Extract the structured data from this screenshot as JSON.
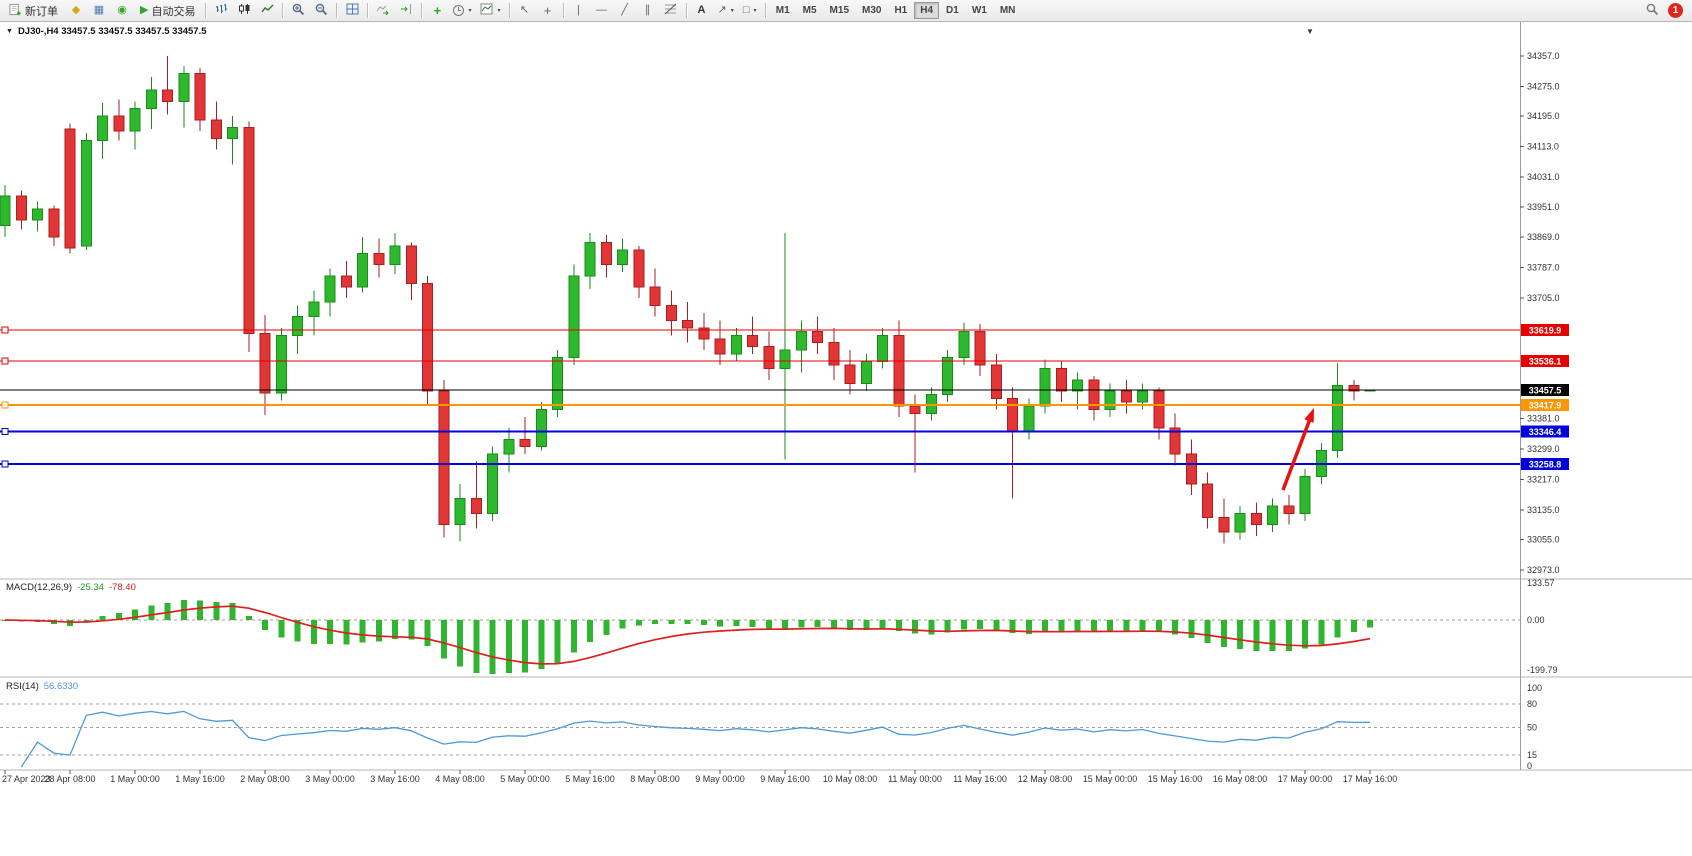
{
  "toolbar": {
    "new_order": "新订单",
    "autotrading": "自动交易",
    "timeframes": [
      "M1",
      "M5",
      "M15",
      "M30",
      "H1",
      "H4",
      "D1",
      "W1",
      "MN"
    ],
    "active_timeframe": "H4",
    "notification_badge": "1"
  },
  "chart": {
    "title": "DJ30-,H4 33457.5 33457.5 33457.5 33457.5",
    "symbol": "DJ30-",
    "period": "H4",
    "price_axis_ticks": [
      "34357.0",
      "34275.0",
      "34195.0",
      "34113.0",
      "34031.0",
      "33951.0",
      "33869.0",
      "33787.0",
      "33705.0",
      "33381.0",
      "33299.0",
      "33217.0",
      "33135.0",
      "33055.0",
      "32973.0"
    ],
    "time_axis_labels": [
      "27 Apr 2023",
      "28 Apr 08:00",
      "1 May 00:00",
      "1 May 16:00",
      "2 May 08:00",
      "3 May 00:00",
      "3 May 16:00",
      "4 May 08:00",
      "5 May 00:00",
      "5 May 16:00",
      "8 May 08:00",
      "9 May 00:00",
      "9 May 16:00",
      "10 May 08:00",
      "11 May 00:00",
      "11 May 16:00",
      "12 May 08:00",
      "15 May 00:00",
      "15 May 16:00",
      "16 May 08:00",
      "17 May 00:00",
      "17 May 16:00"
    ]
  },
  "macd": {
    "label": "MACD(12,26,9)",
    "value_main": "-25.34",
    "value_signal": "-78.40",
    "axis": [
      "133.57",
      "0.00",
      "-199.79"
    ]
  },
  "rsi": {
    "label": "RSI(14)",
    "value": "56.6330",
    "axis": [
      "100",
      "80",
      "50",
      "15",
      "0"
    ],
    "levels": [
      80,
      50,
      15
    ]
  },
  "chart_data": {
    "type": "candlestick",
    "symbol": "DJ30-",
    "timeframe": "H4",
    "current_ohlc": [
      33457.5,
      33457.5,
      33457.5,
      33457.5
    ],
    "price_range": [
      32973.0,
      34357.0
    ],
    "candles": [
      [
        33900,
        34010,
        33870,
        33980
      ],
      [
        33980,
        33995,
        33890,
        33915
      ],
      [
        33915,
        33965,
        33885,
        33945
      ],
      [
        33945,
        33955,
        33845,
        33870
      ],
      [
        34160,
        34175,
        33825,
        33840
      ],
      [
        33845,
        34150,
        33835,
        34130
      ],
      [
        34130,
        34230,
        34080,
        34195
      ],
      [
        34195,
        34240,
        34130,
        34155
      ],
      [
        34155,
        34235,
        34105,
        34215
      ],
      [
        34215,
        34300,
        34160,
        34265
      ],
      [
        34265,
        34357,
        34200,
        34235
      ],
      [
        34235,
        34330,
        34165,
        34310
      ],
      [
        34310,
        34325,
        34155,
        34185
      ],
      [
        34185,
        34235,
        34105,
        34135
      ],
      [
        34135,
        34195,
        34065,
        34165
      ],
      [
        34165,
        34180,
        33560,
        33610
      ],
      [
        33610,
        33660,
        33390,
        33450
      ],
      [
        33450,
        33625,
        33430,
        33605
      ],
      [
        33605,
        33685,
        33555,
        33655
      ],
      [
        33655,
        33725,
        33605,
        33695
      ],
      [
        33695,
        33785,
        33655,
        33765
      ],
      [
        33765,
        33805,
        33705,
        33735
      ],
      [
        33735,
        33870,
        33720,
        33825
      ],
      [
        33825,
        33865,
        33760,
        33795
      ],
      [
        33795,
        33880,
        33770,
        33845
      ],
      [
        33845,
        33855,
        33700,
        33745
      ],
      [
        33745,
        33765,
        33420,
        33455
      ],
      [
        33455,
        33485,
        33060,
        33095
      ],
      [
        33095,
        33205,
        33050,
        33165
      ],
      [
        33165,
        33265,
        33085,
        33125
      ],
      [
        33125,
        33305,
        33105,
        33285
      ],
      [
        33285,
        33355,
        33235,
        33325
      ],
      [
        33325,
        33385,
        33285,
        33305
      ],
      [
        33305,
        33425,
        33295,
        33405
      ],
      [
        33405,
        33565,
        33385,
        33545
      ],
      [
        33545,
        33795,
        33525,
        33765
      ],
      [
        33765,
        33880,
        33730,
        33855
      ],
      [
        33855,
        33875,
        33760,
        33795
      ],
      [
        33795,
        33865,
        33775,
        33835
      ],
      [
        33835,
        33845,
        33705,
        33735
      ],
      [
        33735,
        33785,
        33655,
        33685
      ],
      [
        33685,
        33725,
        33605,
        33645
      ],
      [
        33645,
        33695,
        33585,
        33625
      ],
      [
        33625,
        33665,
        33565,
        33595
      ],
      [
        33595,
        33645,
        33525,
        33555
      ],
      [
        33555,
        33625,
        33535,
        33605
      ],
      [
        33605,
        33655,
        33555,
        33575
      ],
      [
        33575,
        33615,
        33485,
        33515
      ],
      [
        33515,
        33880,
        33270,
        33565
      ],
      [
        33565,
        33645,
        33505,
        33615
      ],
      [
        33615,
        33655,
        33555,
        33585
      ],
      [
        33585,
        33625,
        33485,
        33525
      ],
      [
        33525,
        33565,
        33445,
        33475
      ],
      [
        33475,
        33555,
        33455,
        33535
      ],
      [
        33535,
        33625,
        33515,
        33605
      ],
      [
        33605,
        33645,
        33385,
        33415
      ],
      [
        33415,
        33445,
        33235,
        33395
      ],
      [
        33395,
        33465,
        33375,
        33445
      ],
      [
        33445,
        33565,
        33425,
        33545
      ],
      [
        33545,
        33640,
        33525,
        33615
      ],
      [
        33615,
        33635,
        33495,
        33525
      ],
      [
        33525,
        33555,
        33405,
        33435
      ],
      [
        33435,
        33465,
        33165,
        33345
      ],
      [
        33345,
        33435,
        33325,
        33415
      ],
      [
        33415,
        33540,
        33395,
        33515
      ],
      [
        33515,
        33535,
        33425,
        33455
      ],
      [
        33455,
        33505,
        33405,
        33485
      ],
      [
        33485,
        33495,
        33375,
        33405
      ],
      [
        33405,
        33475,
        33385,
        33455
      ],
      [
        33455,
        33485,
        33395,
        33425
      ],
      [
        33425,
        33475,
        33405,
        33455
      ],
      [
        33455,
        33465,
        33325,
        33355
      ],
      [
        33355,
        33395,
        33255,
        33285
      ],
      [
        33285,
        33325,
        33175,
        33205
      ],
      [
        33205,
        33235,
        33085,
        33115
      ],
      [
        33115,
        33165,
        33045,
        33075
      ],
      [
        33075,
        33145,
        33055,
        33125
      ],
      [
        33125,
        33155,
        33065,
        33095
      ],
      [
        33095,
        33165,
        33075,
        33145
      ],
      [
        33145,
        33175,
        33095,
        33125
      ],
      [
        33125,
        33245,
        33105,
        33225
      ],
      [
        33225,
        33315,
        33205,
        33295
      ],
      [
        33295,
        33530,
        33275,
        33470
      ],
      [
        33470,
        33485,
        33430,
        33455
      ],
      [
        33457.5,
        33457.5,
        33457.5,
        33457.5
      ]
    ],
    "horizontal_levels": [
      {
        "price": 33619.9,
        "label": "33619.9",
        "color": "#e60000",
        "width": 1
      },
      {
        "price": 33536.1,
        "label": "33536.1",
        "color": "#e60000",
        "width": 1
      },
      {
        "price": 33457.5,
        "label": "33457.5",
        "color": "#000000",
        "width": 1,
        "role": "current_price"
      },
      {
        "price": 33417.9,
        "label": "33417.9",
        "color": "#ff9500",
        "width": 2
      },
      {
        "price": 33346.4,
        "label": "33346.4",
        "color": "#0000dd",
        "width": 2
      },
      {
        "price": 33258.8,
        "label": "33258.8",
        "color": "#0000dd",
        "width": 2
      }
    ],
    "indicators": [
      {
        "type": "MACD",
        "params": [
          12,
          26,
          9
        ],
        "display": "-25.34 -78.40",
        "histogram_color": "#2fb52f",
        "signal_color": "#e02020",
        "axis_ticks": [
          133.57,
          0,
          -199.79
        ]
      },
      {
        "type": "RSI",
        "params": [
          14
        ],
        "display": "56.6330",
        "line_color": "#4d9ad6",
        "levels": [
          80,
          50,
          15
        ],
        "axis_ticks": [
          100,
          80,
          50,
          15,
          0
        ]
      }
    ],
    "annotations": [
      {
        "type": "arrow",
        "direction": "up-right",
        "color": "#e81010"
      }
    ],
    "colors": {
      "bull": "#2eb82e",
      "bull_stroke": "#1a8c1a",
      "bear": "#e23535",
      "bear_stroke": "#a81f1f",
      "background": "#ffffff"
    }
  }
}
